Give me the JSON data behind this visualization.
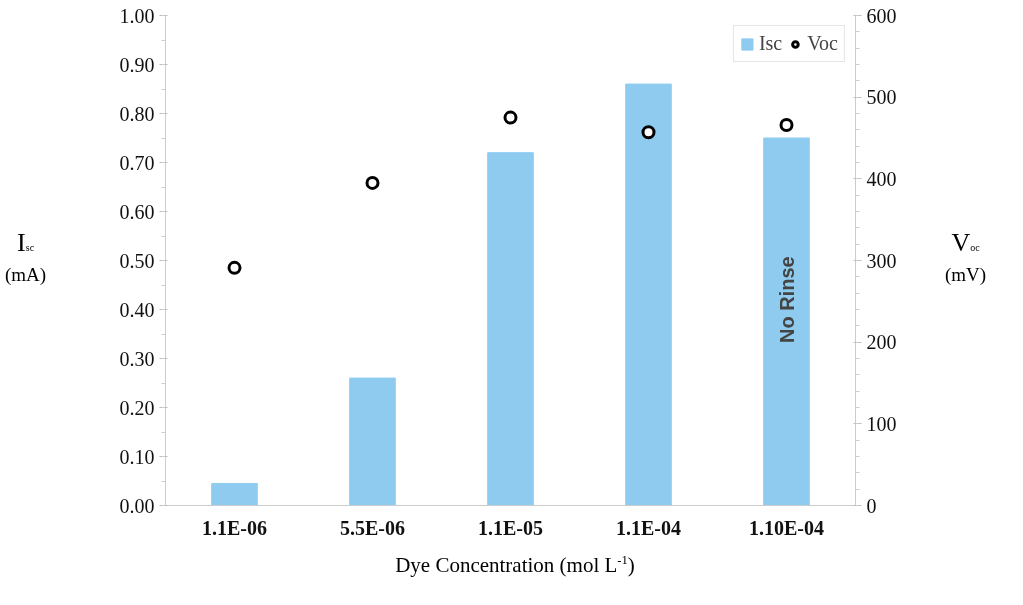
{
  "chart_data": {
    "type": "bar",
    "categories": [
      "1.1E-06",
      "5.5E-06",
      "1.1E-05",
      "1.1E-04",
      "1.10E-04"
    ],
    "series": [
      {
        "name": "Isc",
        "color": "#8ecbef",
        "values": [
          0.045,
          0.26,
          0.72,
          0.86,
          0.75
        ]
      },
      {
        "name": "Voc",
        "type": "scatter",
        "axis": "y2",
        "color": "#000000",
        "values": [
          291,
          395,
          475,
          457,
          466
        ]
      }
    ],
    "xlabel": "Dye Concentration (mol L$^{-1}$)",
    "ylabel": "I$_{sc}$ (mA)",
    "y2label": "V$_{oc}$ (mV)",
    "ylim": [
      0,
      1
    ],
    "yticks": [
      {
        "value": 0,
        "label": "0.00"
      },
      {
        "value": 0.1,
        "label": "0.10"
      },
      {
        "value": 0.2,
        "label": "0.20"
      },
      {
        "value": 0.3,
        "label": "0.30"
      },
      {
        "value": 0.4,
        "label": "0.40"
      },
      {
        "value": 0.5,
        "label": "0.50"
      },
      {
        "value": 0.6,
        "label": "0.60"
      },
      {
        "value": 0.7,
        "label": "0.70"
      },
      {
        "value": 0.8,
        "label": "0.80"
      },
      {
        "value": 0.9,
        "label": "0.90"
      },
      {
        "value": 1,
        "label": "1.00"
      }
    ],
    "y2lim": [
      0,
      600
    ],
    "y2ticks": [
      0,
      100,
      200,
      300,
      400,
      500,
      600
    ],
    "annotations": [
      "No Rinse"
    ],
    "legend": "top right",
    "grid": false,
    "marker": "circle"
  }
}
